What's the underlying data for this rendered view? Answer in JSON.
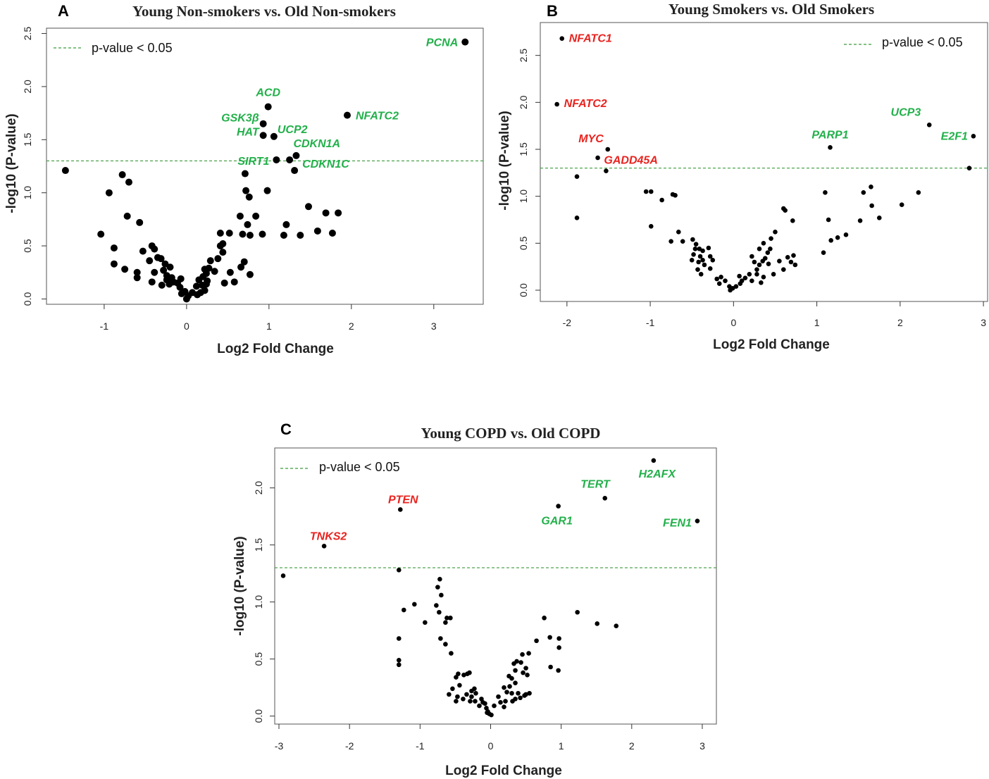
{
  "chart_data": [
    {
      "type": "scatter",
      "panel": "A",
      "title": "Young Non-smokers vs. Old Non-smokers",
      "xlabel": "Log2 Fold Change",
      "ylabel": "-log10 (P-value)",
      "xlim": [
        -1.7,
        3.6
      ],
      "ylim": [
        -0.05,
        2.55
      ],
      "xticks": [
        -1,
        0,
        1,
        2,
        3
      ],
      "yticks": [
        "0.0",
        "0.5",
        "1.0",
        "1.5",
        "2.0",
        "2.5"
      ],
      "threshold": 1.3,
      "legend": "p-value < 0.05",
      "colors": {
        "up": "#22b04a",
        "down": "#e8231f",
        "point": "#000000",
        "threshold": "#3a9a3a"
      },
      "points": [
        [
          3.38,
          2.42
        ],
        [
          0.99,
          1.81
        ],
        [
          1.95,
          1.73
        ],
        [
          0.93,
          1.65
        ],
        [
          1.06,
          1.53
        ],
        [
          0.93,
          1.54
        ],
        [
          1.33,
          1.35
        ],
        [
          1.25,
          1.31
        ],
        [
          1.09,
          1.31
        ],
        [
          1.31,
          1.21
        ],
        [
          -1.47,
          1.21
        ],
        [
          0.71,
          1.18
        ],
        [
          -0.78,
          1.17
        ],
        [
          -0.7,
          1.1
        ],
        [
          -0.94,
          1.0
        ],
        [
          0.72,
          1.02
        ],
        [
          0.98,
          1.02
        ],
        [
          0.76,
          0.96
        ],
        [
          1.48,
          0.87
        ],
        [
          1.69,
          0.81
        ],
        [
          1.84,
          0.81
        ],
        [
          -0.72,
          0.78
        ],
        [
          0.65,
          0.78
        ],
        [
          0.84,
          0.78
        ],
        [
          -0.57,
          0.72
        ],
        [
          0.74,
          0.7
        ],
        [
          1.21,
          0.7
        ],
        [
          0.41,
          0.62
        ],
        [
          0.52,
          0.62
        ],
        [
          -1.04,
          0.61
        ],
        [
          0.68,
          0.61
        ],
        [
          0.77,
          0.6
        ],
        [
          0.92,
          0.61
        ],
        [
          1.18,
          0.6
        ],
        [
          1.38,
          0.6
        ],
        [
          1.59,
          0.64
        ],
        [
          1.77,
          0.62
        ],
        [
          0.41,
          0.5
        ],
        [
          0.44,
          0.52
        ],
        [
          -0.88,
          0.48
        ],
        [
          -0.42,
          0.5
        ],
        [
          -0.39,
          0.47
        ],
        [
          -0.53,
          0.45
        ],
        [
          0.44,
          0.44
        ],
        [
          0.38,
          0.38
        ],
        [
          -0.35,
          0.39
        ],
        [
          -0.31,
          0.38
        ],
        [
          -0.45,
          0.36
        ],
        [
          -0.26,
          0.33
        ],
        [
          -0.88,
          0.33
        ],
        [
          0.7,
          0.35
        ],
        [
          0.29,
          0.36
        ],
        [
          0.66,
          0.3
        ],
        [
          -0.2,
          0.3
        ],
        [
          -0.28,
          0.27
        ],
        [
          -0.75,
          0.28
        ],
        [
          -0.6,
          0.25
        ],
        [
          -0.39,
          0.25
        ],
        [
          0.77,
          0.23
        ],
        [
          0.22,
          0.28
        ],
        [
          0.27,
          0.29
        ],
        [
          0.34,
          0.26
        ],
        [
          0.53,
          0.25
        ],
        [
          -0.24,
          0.22
        ],
        [
          -0.18,
          0.2
        ],
        [
          -0.07,
          0.19
        ],
        [
          0.24,
          0.24
        ],
        [
          0.2,
          0.21
        ],
        [
          0.15,
          0.18
        ],
        [
          0.25,
          0.17
        ],
        [
          -0.6,
          0.2
        ],
        [
          -0.24,
          0.18
        ],
        [
          -0.16,
          0.16
        ],
        [
          -0.11,
          0.15
        ],
        [
          0.24,
          0.14
        ],
        [
          0.46,
          0.15
        ],
        [
          0.58,
          0.16
        ],
        [
          0.12,
          0.12
        ],
        [
          0.19,
          0.13
        ],
        [
          -0.3,
          0.13
        ],
        [
          -0.08,
          0.11
        ],
        [
          -0.02,
          0.07
        ],
        [
          0.07,
          0.06
        ],
        [
          0.22,
          0.08
        ],
        [
          -0.06,
          0.05
        ],
        [
          0.02,
          0.03
        ],
        [
          0.13,
          0.04
        ],
        [
          0.17,
          0.06
        ],
        [
          -0.42,
          0.16
        ],
        [
          -0.21,
          0.14
        ],
        [
          0.0,
          0.0
        ]
      ],
      "annotations": [
        {
          "label": "PCNA",
          "x": 3.38,
          "y": 2.42,
          "dir": "up"
        },
        {
          "label": "ACD",
          "x": 0.99,
          "y": 1.81,
          "dir": "up"
        },
        {
          "label": "NFATC2",
          "x": 1.95,
          "y": 1.73,
          "dir": "up"
        },
        {
          "label": "GSK3β",
          "x": 0.93,
          "y": 1.65,
          "dir": "up"
        },
        {
          "label": "UCP2",
          "x": 1.06,
          "y": 1.53,
          "dir": "up"
        },
        {
          "label": "HAT",
          "x": 0.93,
          "y": 1.54,
          "dir": "up"
        },
        {
          "label": "CDKN1A",
          "x": 1.33,
          "y": 1.35,
          "dir": "up"
        },
        {
          "label": "SIRT1",
          "x": 1.09,
          "y": 1.31,
          "dir": "up"
        },
        {
          "label": "CDKN1C",
          "x": 1.25,
          "y": 1.31,
          "dir": "up"
        }
      ]
    },
    {
      "type": "scatter",
      "panel": "B",
      "title": "Young Smokers vs. Old Smokers",
      "xlabel": "Log2 Fold Change",
      "ylabel": "-log10 (P-value)",
      "xlim": [
        -2.32,
        3.05
      ],
      "ylim": [
        -0.12,
        2.85
      ],
      "xticks": [
        -2,
        -1,
        0,
        1,
        2,
        3
      ],
      "yticks": [
        "0.0",
        "0.5",
        "1.0",
        "1.5",
        "2.0",
        "2.5"
      ],
      "threshold": 1.3,
      "legend": "p-value < 0.05",
      "colors": {
        "up": "#22b04a",
        "down": "#e8231f",
        "point": "#000000",
        "threshold": "#3a9a3a"
      },
      "points": [
        [
          -2.06,
          2.68
        ],
        [
          -2.12,
          1.98
        ],
        [
          -1.51,
          1.5
        ],
        [
          -1.63,
          1.41
        ],
        [
          -1.53,
          1.27
        ],
        [
          -1.88,
          1.21
        ],
        [
          1.16,
          1.52
        ],
        [
          2.35,
          1.76
        ],
        [
          2.88,
          1.64
        ],
        [
          2.83,
          1.3
        ],
        [
          -1.88,
          0.77
        ],
        [
          -1.05,
          1.05
        ],
        [
          -0.99,
          1.05
        ],
        [
          -0.73,
          1.02
        ],
        [
          -0.7,
          1.01
        ],
        [
          -0.86,
          0.96
        ],
        [
          -0.99,
          0.68
        ],
        [
          1.1,
          1.04
        ],
        [
          1.56,
          1.04
        ],
        [
          1.65,
          1.1
        ],
        [
          2.22,
          1.04
        ],
        [
          2.02,
          0.91
        ],
        [
          1.66,
          0.9
        ],
        [
          1.75,
          0.77
        ],
        [
          1.52,
          0.74
        ],
        [
          1.14,
          0.75
        ],
        [
          1.25,
          0.56
        ],
        [
          1.35,
          0.59
        ],
        [
          1.17,
          0.53
        ],
        [
          1.08,
          0.4
        ],
        [
          -0.66,
          0.62
        ],
        [
          -0.61,
          0.52
        ],
        [
          -0.75,
          0.52
        ],
        [
          -0.49,
          0.54
        ],
        [
          -0.45,
          0.49
        ],
        [
          -0.41,
          0.44
        ],
        [
          -0.46,
          0.44
        ],
        [
          -0.37,
          0.42
        ],
        [
          -0.48,
          0.38
        ],
        [
          -0.4,
          0.36
        ],
        [
          -0.3,
          0.45
        ],
        [
          -0.28,
          0.36
        ],
        [
          -0.25,
          0.32
        ],
        [
          -0.37,
          0.32
        ],
        [
          -0.5,
          0.32
        ],
        [
          -0.42,
          0.3
        ],
        [
          -0.35,
          0.27
        ],
        [
          -0.43,
          0.22
        ],
        [
          -0.28,
          0.23
        ],
        [
          -0.39,
          0.17
        ],
        [
          -0.2,
          0.12
        ],
        [
          -0.15,
          0.14
        ],
        [
          -0.1,
          0.1
        ],
        [
          -0.17,
          0.07
        ],
        [
          -0.05,
          0.04
        ],
        [
          -0.01,
          0.02
        ],
        [
          0.03,
          0.04
        ],
        [
          0.08,
          0.07
        ],
        [
          0.1,
          0.1
        ],
        [
          0.14,
          0.13
        ],
        [
          0.19,
          0.17
        ],
        [
          0.22,
          0.1
        ],
        [
          0.25,
          0.3
        ],
        [
          0.31,
          0.27
        ],
        [
          0.35,
          0.31
        ],
        [
          0.28,
          0.22
        ],
        [
          0.38,
          0.34
        ],
        [
          0.42,
          0.28
        ],
        [
          0.45,
          0.55
        ],
        [
          0.5,
          0.62
        ],
        [
          0.36,
          0.5
        ],
        [
          0.31,
          0.44
        ],
        [
          0.41,
          0.4
        ],
        [
          0.44,
          0.44
        ],
        [
          0.55,
          0.31
        ],
        [
          0.6,
          0.22
        ],
        [
          0.65,
          0.35
        ],
        [
          0.69,
          0.3
        ],
        [
          0.74,
          0.27
        ],
        [
          0.72,
          0.37
        ],
        [
          0.6,
          0.87
        ],
        [
          0.62,
          0.85
        ],
        [
          0.71,
          0.74
        ],
        [
          0.28,
          0.17
        ],
        [
          0.36,
          0.14
        ],
        [
          0.48,
          0.17
        ],
        [
          0.22,
          0.36
        ],
        [
          0.07,
          0.15
        ],
        [
          0.33,
          0.08
        ],
        [
          -0.04,
          0.0
        ]
      ],
      "annotations": [
        {
          "label": "NFATC1",
          "x": -2.06,
          "y": 2.68,
          "dir": "down"
        },
        {
          "label": "NFATC2",
          "x": -2.12,
          "y": 1.98,
          "dir": "down"
        },
        {
          "label": "MYC",
          "x": -1.51,
          "y": 1.5,
          "dir": "down"
        },
        {
          "label": "GADD45A",
          "x": -1.53,
          "y": 1.27,
          "dir": "down"
        },
        {
          "label": "PARP1",
          "x": 1.16,
          "y": 1.52,
          "dir": "up"
        },
        {
          "label": "UCP3",
          "x": 2.35,
          "y": 1.76,
          "dir": "up"
        },
        {
          "label": "E2F1",
          "x": 2.88,
          "y": 1.64,
          "dir": "up"
        }
      ]
    },
    {
      "type": "scatter",
      "panel": "C",
      "title": "Young COPD vs. Old COPD",
      "xlabel": "Log2 Fold Change",
      "ylabel": "-log10 (P-value)",
      "xlim": [
        -3.06,
        3.2
      ],
      "ylim": [
        -0.07,
        2.35
      ],
      "xticks": [
        -3,
        -2,
        -1,
        0,
        1,
        2,
        3
      ],
      "yticks": [
        "0.0",
        "0.5",
        "1.0",
        "1.5",
        "2.0"
      ],
      "threshold": 1.3,
      "legend": "p-value < 0.05",
      "colors": {
        "up": "#22b04a",
        "down": "#e8231f",
        "point": "#000000",
        "threshold": "#3a9a3a"
      },
      "points": [
        [
          2.31,
          2.24
        ],
        [
          1.62,
          1.91
        ],
        [
          0.96,
          1.84
        ],
        [
          2.93,
          1.71
        ],
        [
          -1.28,
          1.81
        ],
        [
          -2.36,
          1.49
        ],
        [
          -1.3,
          1.28
        ],
        [
          -2.94,
          1.23
        ],
        [
          -0.72,
          1.2
        ],
        [
          -0.75,
          1.13
        ],
        [
          -0.7,
          1.06
        ],
        [
          -1.08,
          0.98
        ],
        [
          -0.77,
          0.97
        ],
        [
          -0.62,
          0.86
        ],
        [
          -0.57,
          0.86
        ],
        [
          -0.64,
          0.82
        ],
        [
          -0.73,
          0.91
        ],
        [
          -1.23,
          0.93
        ],
        [
          -0.93,
          0.82
        ],
        [
          -0.71,
          0.68
        ],
        [
          -0.64,
          0.63
        ],
        [
          -0.56,
          0.55
        ],
        [
          -1.3,
          0.68
        ],
        [
          -1.3,
          0.49
        ],
        [
          -1.3,
          0.45
        ],
        [
          1.23,
          0.91
        ],
        [
          1.51,
          0.81
        ],
        [
          1.78,
          0.79
        ],
        [
          0.76,
          0.86
        ],
        [
          0.65,
          0.66
        ],
        [
          0.84,
          0.69
        ],
        [
          0.97,
          0.68
        ],
        [
          0.97,
          0.6
        ],
        [
          0.54,
          0.55
        ],
        [
          0.45,
          0.54
        ],
        [
          0.37,
          0.48
        ],
        [
          0.43,
          0.47
        ],
        [
          0.33,
          0.46
        ],
        [
          0.5,
          0.42
        ],
        [
          0.85,
          0.43
        ],
        [
          0.96,
          0.4
        ],
        [
          0.35,
          0.4
        ],
        [
          0.46,
          0.38
        ],
        [
          0.52,
          0.36
        ],
        [
          0.26,
          0.35
        ],
        [
          0.3,
          0.33
        ],
        [
          0.35,
          0.29
        ],
        [
          0.27,
          0.26
        ],
        [
          0.19,
          0.25
        ],
        [
          0.23,
          0.21
        ],
        [
          0.3,
          0.2
        ],
        [
          0.39,
          0.2
        ],
        [
          0.5,
          0.19
        ],
        [
          0.55,
          0.2
        ],
        [
          0.21,
          0.13
        ],
        [
          0.35,
          0.15
        ],
        [
          0.42,
          0.16
        ],
        [
          0.48,
          0.18
        ],
        [
          0.14,
          0.12
        ],
        [
          0.05,
          0.09
        ],
        [
          -0.3,
          0.38
        ],
        [
          -0.33,
          0.37
        ],
        [
          -0.46,
          0.37
        ],
        [
          -0.38,
          0.36
        ],
        [
          -0.49,
          0.34
        ],
        [
          -0.44,
          0.27
        ],
        [
          -0.54,
          0.24
        ],
        [
          -0.59,
          0.19
        ],
        [
          -0.27,
          0.22
        ],
        [
          -0.23,
          0.24
        ],
        [
          -0.21,
          0.2
        ],
        [
          -0.27,
          0.17
        ],
        [
          -0.34,
          0.19
        ],
        [
          -0.47,
          0.17
        ],
        [
          -0.39,
          0.15
        ],
        [
          -0.49,
          0.13
        ],
        [
          -0.29,
          0.13
        ],
        [
          -0.22,
          0.13
        ],
        [
          -0.11,
          0.12
        ],
        [
          -0.16,
          0.09
        ],
        [
          -0.06,
          0.07
        ],
        [
          -0.04,
          0.04
        ],
        [
          -0.02,
          0.02
        ],
        [
          0.01,
          0.01
        ],
        [
          -0.13,
          0.15
        ],
        [
          -0.08,
          0.11
        ],
        [
          0.19,
          0.08
        ],
        [
          0.31,
          0.13
        ],
        [
          0.11,
          0.17
        ],
        [
          -0.05,
          0.03
        ]
      ],
      "annotations": [
        {
          "label": "H2AFX",
          "x": 2.31,
          "y": 2.24,
          "dir": "up"
        },
        {
          "label": "TERT",
          "x": 1.62,
          "y": 1.91,
          "dir": "up"
        },
        {
          "label": "GAR1",
          "x": 0.96,
          "y": 1.84,
          "dir": "up"
        },
        {
          "label": "FEN1",
          "x": 2.93,
          "y": 1.71,
          "dir": "up"
        },
        {
          "label": "PTEN",
          "x": -1.28,
          "y": 1.81,
          "dir": "down"
        },
        {
          "label": "TNKS2",
          "x": -2.36,
          "y": 1.49,
          "dir": "down"
        }
      ]
    }
  ]
}
